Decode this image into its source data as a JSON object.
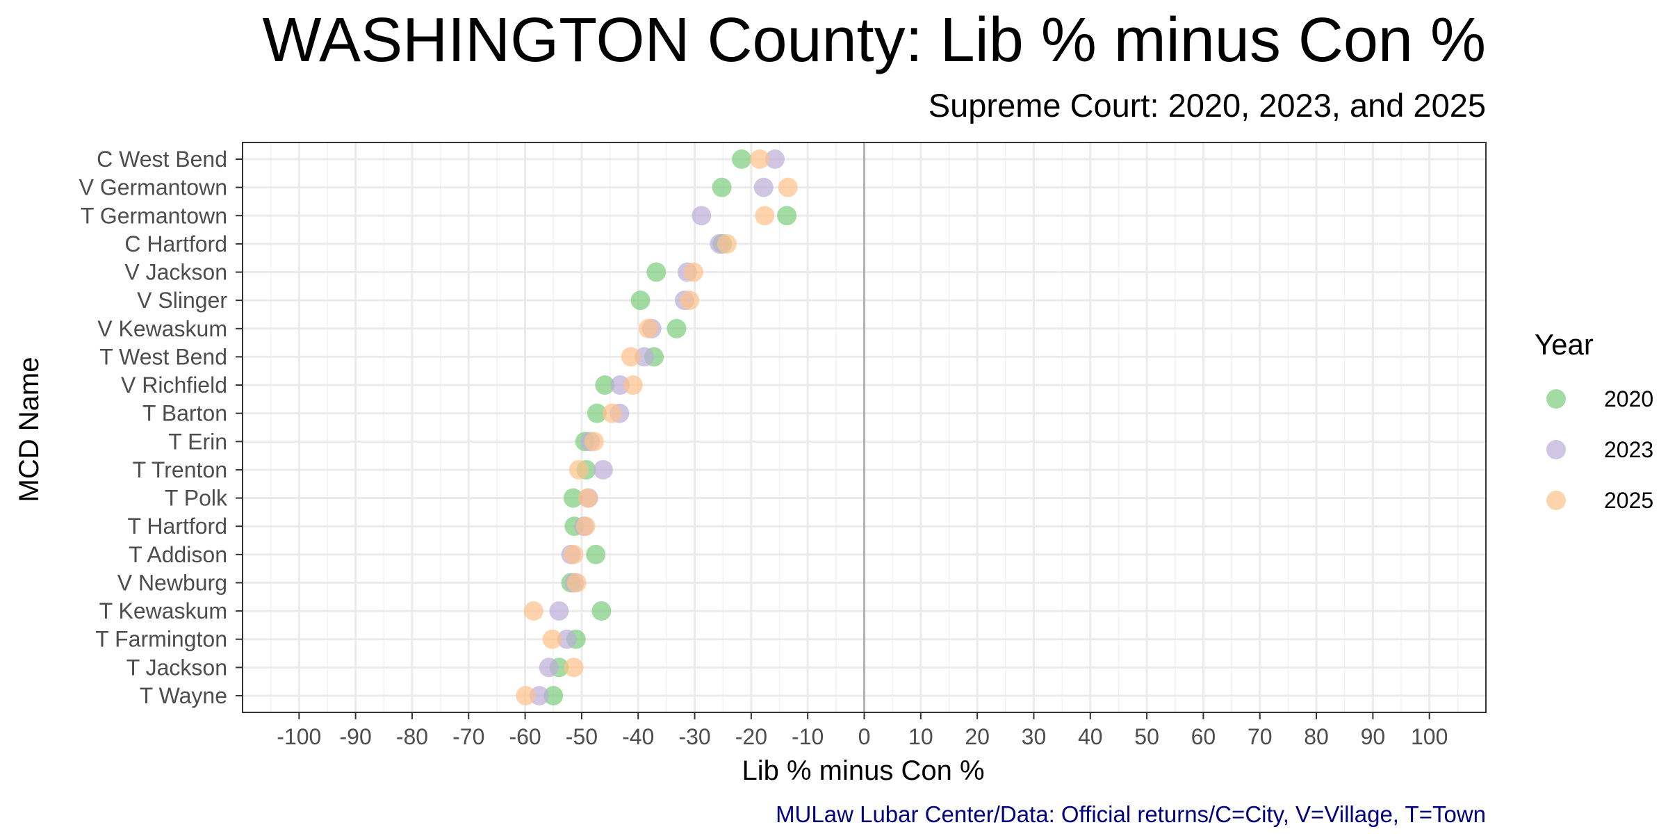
{
  "chart_data": {
    "type": "scatter",
    "title": "WASHINGTON County: Lib % minus Con %",
    "subtitle": "Supreme Court: 2020, 2023, and 2025",
    "xlabel": "Lib % minus Con %",
    "ylabel": "MCD Name",
    "caption": "MULaw Lubar Center/Data: Official returns/C=City, V=Village, T=Town",
    "xlim": [
      -110,
      110
    ],
    "x_ticks": [
      -100,
      -90,
      -80,
      -70,
      -60,
      -50,
      -40,
      -30,
      -20,
      -10,
      0,
      10,
      20,
      30,
      40,
      50,
      60,
      70,
      80,
      90,
      100
    ],
    "x_tick_labels": [
      "-100",
      "-90",
      "-80",
      "-70",
      "-60",
      "-50",
      "-40",
      "-30",
      "-20",
      "-10",
      "0",
      "10",
      "20",
      "30",
      "40",
      "50",
      "60",
      "70",
      "80",
      "90",
      "100"
    ],
    "reference_line_x": 0,
    "grid": true,
    "legend": {
      "title": "Year",
      "placement": "right"
    },
    "categories": [
      "C West Bend",
      "V Germantown",
      "T Germantown",
      "C Hartford",
      "V Jackson",
      "V Slinger",
      "V Kewaskum",
      "T West Bend",
      "V Richfield",
      "T Barton",
      "T Erin",
      "T Trenton",
      "T Polk",
      "T Hartford",
      "T Addison",
      "V Newburg",
      "T Kewaskum",
      "T Farmington",
      "T Jackson",
      "T Wayne"
    ],
    "series": [
      {
        "name": "2020",
        "color": "#7ccd7c",
        "values": [
          -21.7,
          -25.2,
          -13.7,
          -25.1,
          -36.8,
          -39.6,
          -33.2,
          -37.2,
          -45.9,
          -47.3,
          -49.4,
          -49.2,
          -51.5,
          -51.3,
          -47.5,
          -51.9,
          -46.5,
          -51.0,
          -54.0,
          -55.0
        ]
      },
      {
        "name": "2023",
        "color": "#bcaed8",
        "values": [
          -15.8,
          -17.8,
          -28.8,
          -25.6,
          -31.3,
          -31.8,
          -37.6,
          -38.9,
          -43.2,
          -43.3,
          -48.5,
          -46.2,
          -48.8,
          -49.6,
          -51.9,
          -51.3,
          -54.0,
          -52.6,
          -55.8,
          -57.5
        ]
      },
      {
        "name": "2025",
        "color": "#ffc28a",
        "values": [
          -18.5,
          -13.5,
          -17.6,
          -24.3,
          -30.2,
          -30.9,
          -38.2,
          -41.3,
          -40.9,
          -44.6,
          -47.8,
          -50.5,
          -48.9,
          -49.3,
          -51.4,
          -50.9,
          -58.5,
          -55.2,
          -51.4,
          -59.9
        ]
      }
    ]
  }
}
